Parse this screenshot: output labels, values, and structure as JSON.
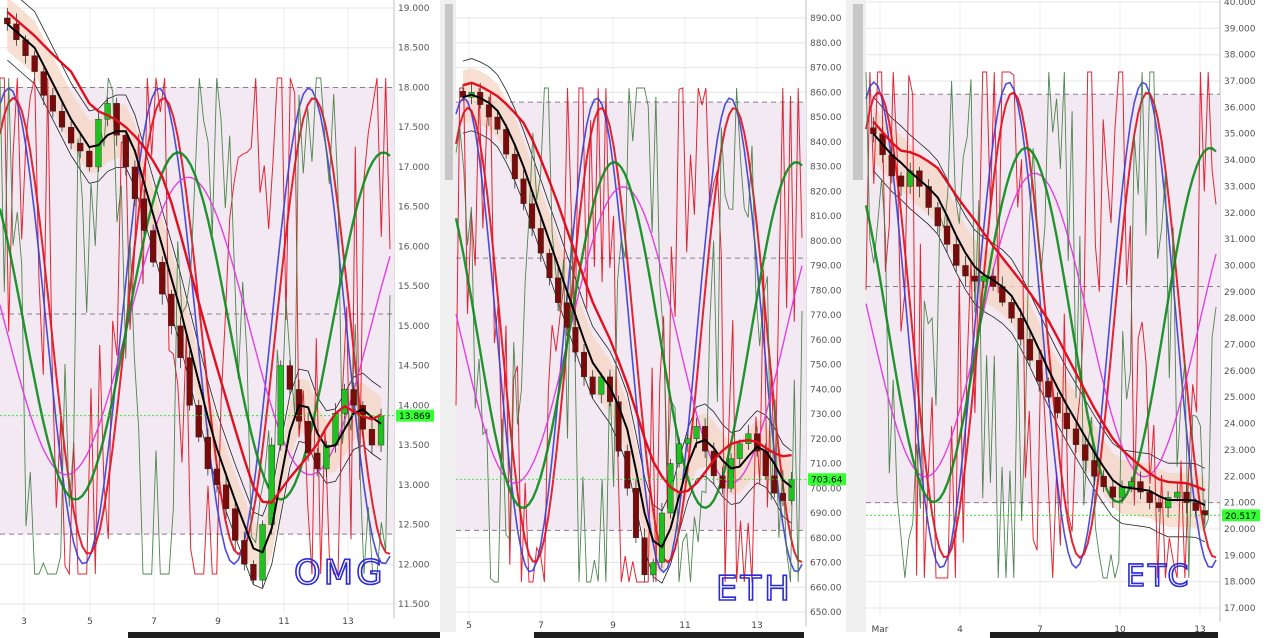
{
  "colors": {
    "up_candle": "#1ec21e",
    "down_candle": "#7a0b0b",
    "ma_fast": "#000000",
    "ma_slow": "#e01020",
    "band_fill": "#f6d6c3",
    "osc_blue": "#3a3ad8",
    "osc_red": "#e01020",
    "osc_green": "#0a8a1a",
    "osc_magenta": "#e030e0",
    "osc_thin": "#3e7a3e",
    "price_tag": "#33ff33",
    "handwriting": "#2a2ad8"
  },
  "chart_data": [
    {
      "type": "candlestick",
      "symbol_annotation": "OMG",
      "current_price_label": "13.869",
      "ylim": [
        11.5,
        19.0
      ],
      "yticks": [
        "11.500",
        "12.000",
        "12.500",
        "13.000",
        "13.500",
        "14.000",
        "14.500",
        "15.000",
        "15.500",
        "16.000",
        "16.500",
        "17.000",
        "17.500",
        "18.000",
        "18.500",
        "19.000"
      ],
      "xticks": [
        "3",
        "5",
        "7",
        "9",
        "11",
        "13"
      ],
      "levels": [
        18.0,
        15.15,
        12.38
      ],
      "closes": [
        18.8,
        18.6,
        18.4,
        18.2,
        17.9,
        17.7,
        17.5,
        17.3,
        17.2,
        17.0,
        17.6,
        17.8,
        17.4,
        17.0,
        16.6,
        16.2,
        15.8,
        15.4,
        15.0,
        14.6,
        14.0,
        13.6,
        13.2,
        13.0,
        12.7,
        12.3,
        12.0,
        11.8,
        12.5,
        13.5,
        14.5,
        14.2,
        13.8,
        13.4,
        13.2,
        13.5,
        13.9,
        14.2,
        14.0,
        13.7,
        13.5,
        13.87
      ]
    },
    {
      "type": "candlestick",
      "symbol_annotation": "ETH",
      "current_price_label": "703.64",
      "ylim": [
        650,
        890
      ],
      "yticks": [
        "650.00",
        "660.00",
        "670.00",
        "680.00",
        "690.00",
        "700.00",
        "710.00",
        "720.00",
        "730.00",
        "740.00",
        "750.00",
        "760.00",
        "770.00",
        "780.00",
        "790.00",
        "800.00",
        "810.00",
        "820.00",
        "830.00",
        "840.00",
        "850.00",
        "860.00",
        "870.00",
        "880.00",
        "890.00"
      ],
      "xticks": [
        "5",
        "7",
        "9",
        "11",
        "13"
      ],
      "levels": [
        856,
        793,
        683
      ],
      "closes": [
        858,
        860,
        855,
        850,
        845,
        835,
        825,
        815,
        805,
        795,
        785,
        775,
        765,
        755,
        745,
        738,
        745,
        735,
        715,
        700,
        680,
        665,
        670,
        690,
        710,
        718,
        720,
        725,
        715,
        705,
        700,
        712,
        718,
        722,
        715,
        705,
        698,
        695,
        703.64
      ]
    },
    {
      "type": "candlestick",
      "symbol_annotation": "ETC",
      "current_price_label": "20.517",
      "ylim": [
        17.0,
        40.0
      ],
      "yticks": [
        "17.000",
        "18.000",
        "19.000",
        "20.000",
        "21.000",
        "22.000",
        "23.000",
        "24.000",
        "25.000",
        "26.000",
        "27.000",
        "28.000",
        "29.000",
        "30.000",
        "31.000",
        "32.000",
        "33.000",
        "34.000",
        "35.000",
        "36.000",
        "37.000",
        "38.000",
        "39.000",
        "40.000"
      ],
      "xticks": [
        "Mar",
        "4",
        "7",
        "10",
        "13"
      ],
      "levels": [
        36.5,
        29.2,
        21.0
      ],
      "closes": [
        35.0,
        34.2,
        33.4,
        33.0,
        33.6,
        33.0,
        32.2,
        31.5,
        30.8,
        30.0,
        29.6,
        29.4,
        29.6,
        29.2,
        28.6,
        28.0,
        27.2,
        26.4,
        25.6,
        25.0,
        24.4,
        23.8,
        23.2,
        22.6,
        22.0,
        21.6,
        21.2,
        21.6,
        21.8,
        21.4,
        21.0,
        20.8,
        21.2,
        21.4,
        21.0,
        20.7,
        20.517
      ]
    }
  ]
}
